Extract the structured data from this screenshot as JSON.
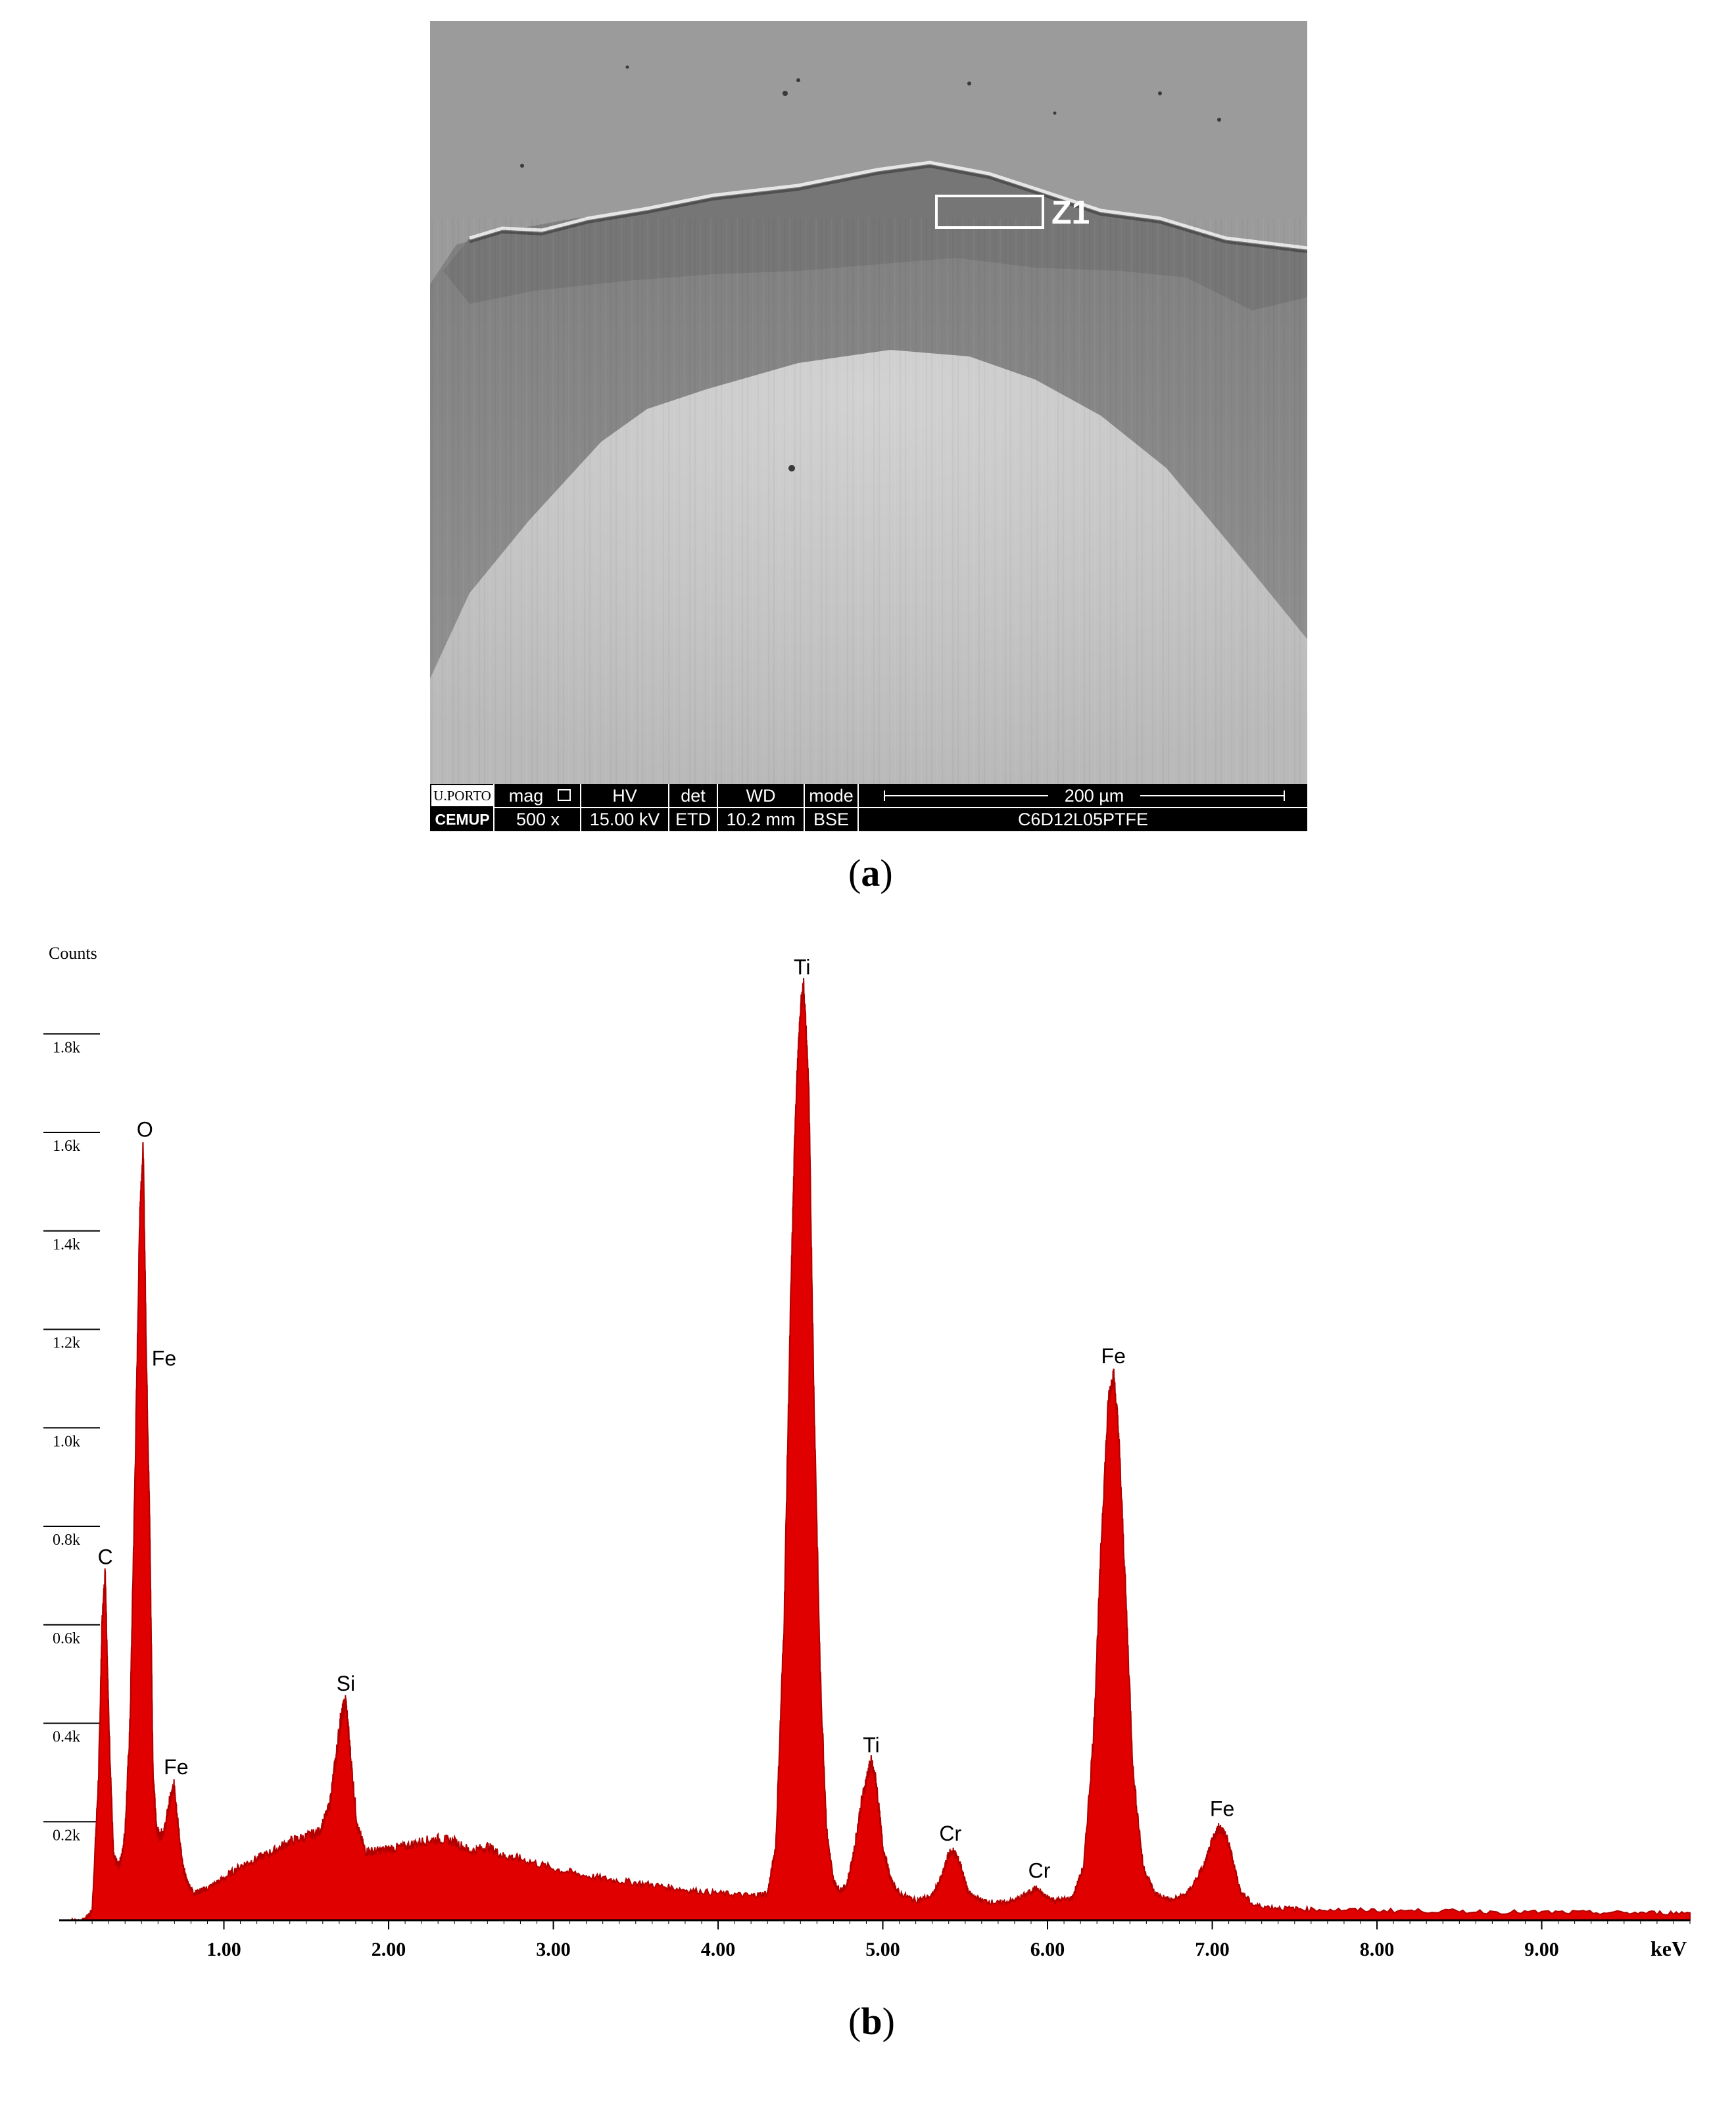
{
  "figure_a": {
    "caption_open": "(",
    "caption_letter": "a",
    "caption_close": ")",
    "region_label": "Z1",
    "databar": {
      "logo_top": "U.PORTO",
      "logo_bottom": "CEMUP",
      "mag_label": "mag",
      "mag_icon": "square-icon",
      "mag_value": "500 x",
      "hv_label": "HV",
      "hv_value": "15.00 kV",
      "det_label": "det",
      "det_value": "ETD",
      "wd_label": "WD",
      "wd_value": "10.2 mm",
      "mode_label": "mode",
      "mode_value": "BSE",
      "scale_label": "200 µm",
      "sample_name": "C6D12L05PTFE"
    }
  },
  "figure_b": {
    "caption_open": "(",
    "caption_letter": "b",
    "caption_close": ")"
  },
  "chart_data": {
    "type": "area",
    "title": "",
    "xlabel": "keV",
    "ylabel": "Counts",
    "xlim": [
      0.0,
      9.9
    ],
    "ylim": [
      0,
      1950
    ],
    "xticks": [
      "1.00",
      "2.00",
      "3.00",
      "4.00",
      "5.00",
      "6.00",
      "7.00",
      "8.00",
      "9.00"
    ],
    "yticks": [
      "0.2k",
      "0.4k",
      "0.6k",
      "0.8k",
      "1.0k",
      "1.2k",
      "1.4k",
      "1.6k",
      "1.8k"
    ],
    "grid": false,
    "fill_color": "#e00000",
    "peak_labels": [
      {
        "label": "C",
        "x": 0.28,
        "y": 710
      },
      {
        "label": "O",
        "x": 0.52,
        "y": 1570
      },
      {
        "label": "Fe",
        "x": 0.53,
        "y": 1140
      },
      {
        "label": "Fe",
        "x": 0.71,
        "y": 275
      },
      {
        "label": "Si",
        "x": 1.74,
        "y": 445
      },
      {
        "label": "Ti",
        "x": 4.51,
        "y": 1900
      },
      {
        "label": "Ti",
        "x": 4.93,
        "y": 320
      },
      {
        "label": "Cr",
        "x": 5.41,
        "y": 140
      },
      {
        "label": "Cr",
        "x": 5.95,
        "y": 65
      },
      {
        "label": "Fe",
        "x": 6.4,
        "y": 1110
      },
      {
        "label": "Fe",
        "x": 7.06,
        "y": 190
      }
    ],
    "spectrum": {
      "x": [
        0.05,
        0.15,
        0.2,
        0.24,
        0.26,
        0.28,
        0.3,
        0.33,
        0.36,
        0.38,
        0.4,
        0.43,
        0.46,
        0.49,
        0.51,
        0.53,
        0.55,
        0.57,
        0.59,
        0.61,
        0.64,
        0.67,
        0.7,
        0.72,
        0.75,
        0.78,
        0.82,
        0.86,
        0.9,
        1.0,
        1.1,
        1.2,
        1.3,
        1.4,
        1.5,
        1.58,
        1.64,
        1.68,
        1.71,
        1.74,
        1.77,
        1.81,
        1.86,
        1.92,
        2.0,
        2.1,
        2.2,
        2.3,
        2.4,
        2.5,
        2.6,
        2.7,
        2.8,
        3.0,
        3.2,
        3.4,
        3.6,
        3.8,
        4.0,
        4.2,
        4.3,
        4.35,
        4.4,
        4.44,
        4.47,
        4.5,
        4.52,
        4.55,
        4.58,
        4.62,
        4.66,
        4.7,
        4.74,
        4.78,
        4.82,
        4.87,
        4.91,
        4.93,
        4.96,
        5.0,
        5.05,
        5.1,
        5.2,
        5.3,
        5.36,
        5.4,
        5.43,
        5.47,
        5.52,
        5.6,
        5.7,
        5.8,
        5.88,
        5.93,
        5.98,
        6.05,
        6.15,
        6.22,
        6.28,
        6.33,
        6.37,
        6.4,
        6.43,
        6.47,
        6.52,
        6.58,
        6.65,
        6.75,
        6.85,
        6.95,
        7.0,
        7.04,
        7.08,
        7.12,
        7.17,
        7.25,
        7.4,
        7.6,
        8.0,
        8.5,
        9.0,
        9.5,
        9.9
      ],
      "y": [
        0,
        0,
        20,
        300,
        600,
        710,
        420,
        130,
        110,
        130,
        180,
        400,
        900,
        1450,
        1570,
        1140,
        800,
        300,
        190,
        170,
        185,
        240,
        275,
        200,
        110,
        75,
        55,
        60,
        65,
        85,
        110,
        125,
        140,
        160,
        170,
        180,
        230,
        330,
        410,
        445,
        330,
        190,
        140,
        140,
        145,
        150,
        160,
        165,
        160,
        140,
        150,
        130,
        125,
        105,
        90,
        80,
        72,
        62,
        55,
        50,
        55,
        150,
        600,
        1250,
        1650,
        1850,
        1900,
        1700,
        1100,
        500,
        180,
        80,
        60,
        70,
        130,
        240,
        300,
        320,
        280,
        150,
        80,
        55,
        40,
        50,
        90,
        135,
        140,
        115,
        55,
        40,
        35,
        40,
        55,
        65,
        50,
        40,
        45,
        110,
        380,
        800,
        1060,
        1110,
        1000,
        700,
        300,
        110,
        55,
        40,
        55,
        110,
        160,
        190,
        175,
        130,
        60,
        30,
        25,
        22,
        20,
        18,
        16,
        15,
        15
      ]
    }
  }
}
